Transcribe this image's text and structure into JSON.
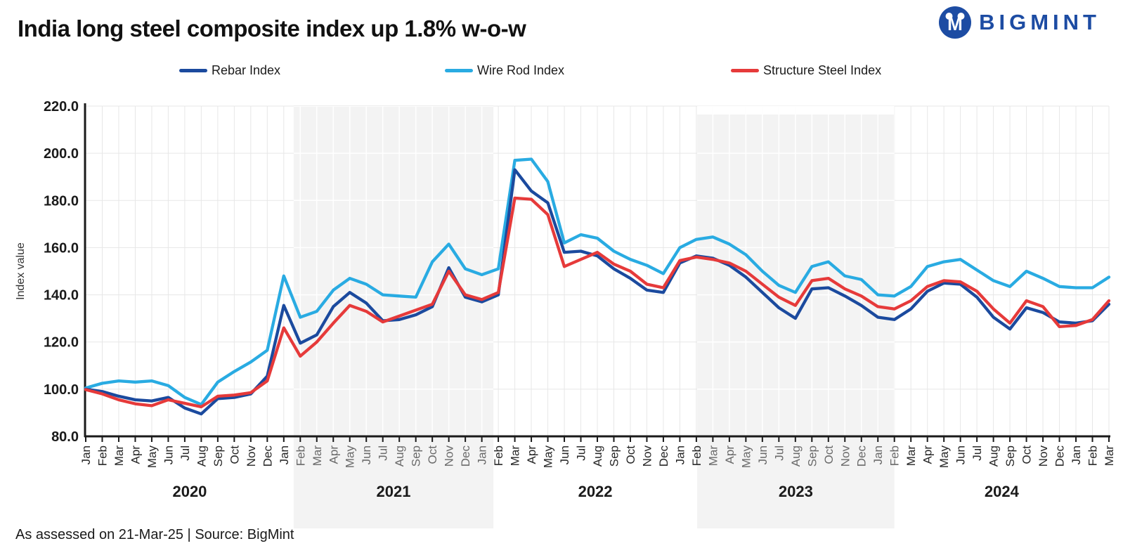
{
  "header": {
    "title": "India long steel composite index up 1.8% w-o-w",
    "brand": "BIGMINT",
    "brand_color": "#1d4ca3"
  },
  "footer": {
    "text": "As assessed on 21-Mar-25  |  Source: BigMint"
  },
  "chart_data": {
    "type": "line",
    "title": "India long steel composite index up 1.8% w-o-w",
    "xlabel": "",
    "ylabel": "Index value",
    "ylim": [
      80,
      220
    ],
    "ytick_step": 20,
    "y_tick_labels": [
      "220.0",
      "200.0",
      "180.0",
      "160.0",
      "140.0",
      "120.0",
      "100.0",
      "80.0"
    ],
    "grid": true,
    "legend_position": "top",
    "shaded_year_bands": [
      "2021",
      "2023"
    ],
    "year_labels": [
      "2020",
      "2021",
      "2022",
      "2023",
      "2024"
    ],
    "x_month_labels": [
      "Jan",
      "Feb",
      "Mar",
      "Apr",
      "May",
      "Jun",
      "Jul",
      "Aug",
      "Sep",
      "Oct",
      "Nov",
      "Dec",
      "Jan",
      "Feb",
      "Mar",
      "Apr",
      "May",
      "Jun",
      "Jul",
      "Aug",
      "Sep",
      "Oct",
      "Nov",
      "Dec",
      "Jan",
      "Feb",
      "Mar",
      "Apr",
      "May",
      "Jun",
      "Jul",
      "Aug",
      "Sep",
      "Oct",
      "Nov",
      "Dec",
      "Jan",
      "Feb",
      "Mar",
      "Apr",
      "May",
      "Jun",
      "Jul",
      "Aug",
      "Sep",
      "Oct",
      "Nov",
      "Dec",
      "Jan",
      "Feb",
      "Mar",
      "Apr",
      "May",
      "Jun",
      "Jul",
      "Aug",
      "Sep",
      "Oct",
      "Nov",
      "Dec",
      "Jan",
      "Feb",
      "Mar"
    ],
    "series": [
      {
        "name": "Rebar Index",
        "color": "#1b4a9e",
        "values": [
          100,
          99,
          97,
          95.5,
          95,
          96.5,
          92,
          89.5,
          96,
          96.5,
          98,
          105.5,
          135.5,
          119.5,
          123,
          135,
          141,
          136.5,
          129,
          129.5,
          131.5,
          135,
          151.5,
          139,
          137,
          140,
          193,
          184,
          179,
          158,
          158.5,
          156.5,
          151,
          147,
          142,
          141,
          153.5,
          156.5,
          155.5,
          152.5,
          147.5,
          141,
          134.5,
          130,
          142.5,
          143,
          139.5,
          135.5,
          130.5,
          129.5,
          134,
          141.5,
          145,
          144.5,
          139,
          130.5,
          125.5,
          134.5,
          132.5,
          128.5,
          128,
          129,
          136
        ]
      },
      {
        "name": "Wire Rod Index",
        "color": "#29abe2",
        "values": [
          100.5,
          102.5,
          103.5,
          103,
          103.5,
          101.5,
          96.5,
          93.5,
          103,
          107.5,
          111.5,
          116.5,
          148,
          130.5,
          133,
          142,
          147,
          144.5,
          140,
          139.5,
          139,
          154,
          161.5,
          151,
          148.5,
          151,
          197,
          197.5,
          188,
          162,
          165.5,
          164,
          158.5,
          155,
          152.5,
          149,
          160,
          163.5,
          164.5,
          161.5,
          157,
          150,
          144,
          141,
          152,
          154,
          148,
          146.5,
          140,
          139.5,
          143.5,
          152,
          154,
          155,
          150.5,
          146,
          143.5,
          150,
          147,
          143.5,
          143,
          143,
          147.5
        ]
      },
      {
        "name": "Structure Steel Index",
        "color": "#e63a3a",
        "values": [
          99.8,
          98,
          95.5,
          93.8,
          93,
          95.5,
          94,
          92.5,
          97,
          97.5,
          98.5,
          103.5,
          126,
          114,
          120,
          128,
          135.5,
          133,
          128.5,
          131,
          133.5,
          136,
          150,
          140,
          138,
          141,
          181,
          180.5,
          174,
          152,
          155,
          158,
          153,
          150,
          144.5,
          143,
          154.5,
          156,
          155,
          153.5,
          150,
          144.5,
          139,
          135.5,
          146,
          147,
          142.5,
          139.5,
          135,
          134,
          137.5,
          143.5,
          146,
          145.5,
          141.5,
          134,
          128,
          137.5,
          135,
          126.5,
          127,
          129.5,
          137.5
        ]
      }
    ]
  }
}
